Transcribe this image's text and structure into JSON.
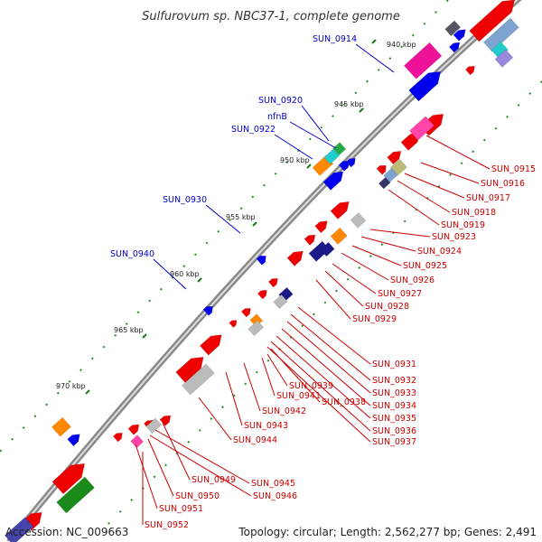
{
  "title": "Sulfurovum sp. NBC37-1, complete genome",
  "ticks": [
    {
      "label": "940 kbp"
    },
    {
      "label": "945 kbp"
    },
    {
      "label": "950 kbp"
    },
    {
      "label": "955 kbp"
    },
    {
      "label": "960 kbp"
    },
    {
      "label": "965 kbp"
    },
    {
      "label": "970 kbp"
    }
  ],
  "labels_left": [
    {
      "text": "SUN_0914",
      "color": "#0000cc"
    },
    {
      "text": "SUN_0920",
      "color": "#0000cc"
    },
    {
      "text": "nfnB",
      "color": "#0000cc"
    },
    {
      "text": "SUN_0922",
      "color": "#0000cc"
    },
    {
      "text": "SUN_0930",
      "color": "#0000cc"
    },
    {
      "text": "SUN_0940",
      "color": "#0000cc"
    }
  ],
  "labels_right": [
    {
      "text": "SUN_0915"
    },
    {
      "text": "SUN_0916"
    },
    {
      "text": "SUN_0917"
    },
    {
      "text": "SUN_0918"
    },
    {
      "text": "SUN_0919"
    },
    {
      "text": "SUN_0923"
    },
    {
      "text": "SUN_0924"
    },
    {
      "text": "SUN_0925"
    },
    {
      "text": "SUN_0926"
    },
    {
      "text": "SUN_0927"
    },
    {
      "text": "SUN_0928"
    },
    {
      "text": "SUN_0929"
    },
    {
      "text": "SUN_0931"
    },
    {
      "text": "SUN_0932"
    },
    {
      "text": "SUN_0933"
    },
    {
      "text": "SUN_0934"
    },
    {
      "text": "SUN_0935"
    },
    {
      "text": "SUN_0936"
    },
    {
      "text": "SUN_0937"
    },
    {
      "text": "SUN_0939"
    },
    {
      "text": "SUN_0941"
    },
    {
      "text": "SUN_0938"
    },
    {
      "text": "SUN_0942"
    },
    {
      "text": "SUN_0943"
    },
    {
      "text": "SUN_0944"
    },
    {
      "text": "SUN_0949"
    },
    {
      "text": "SUN_0945"
    },
    {
      "text": "SUN_0946"
    },
    {
      "text": "SUN_0950"
    },
    {
      "text": "SUN_0951"
    },
    {
      "text": "SUN_0952"
    }
  ],
  "colors": {
    "reverse_cds": "#ee0000",
    "forward_cds": "#0000ee",
    "right_label": "#cc0000",
    "left_label": "#0000cc",
    "backbone": "#888888",
    "tick": "#1a7a1a"
  },
  "footer": {
    "accession": "Accession: NC_009663",
    "stats": "Topology: circular; Length: 2,562,277 bp; Genes: 2,491"
  }
}
